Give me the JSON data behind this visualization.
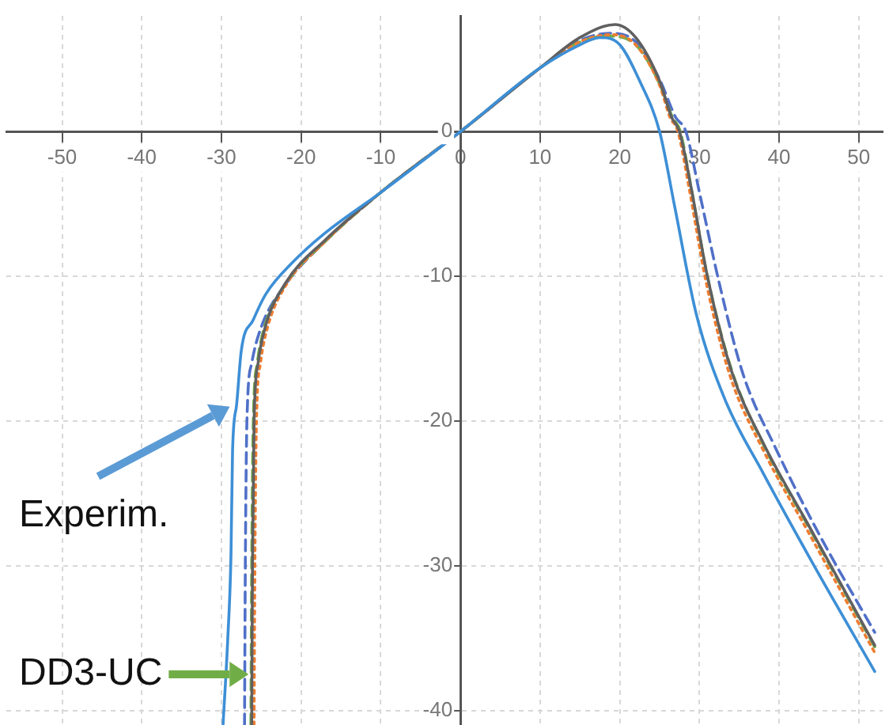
{
  "chart_data": {
    "type": "line",
    "xlim": [
      -57,
      53
    ],
    "ylim": [
      -41,
      8
    ],
    "xticks": [
      -50,
      -40,
      -30,
      -20,
      -10,
      0,
      10,
      20,
      30,
      40,
      50
    ],
    "yticks": [
      -40,
      -30,
      -20,
      -10,
      0
    ],
    "grid": true,
    "marker": "none",
    "series": [
      {
        "color": "#3d8fd6",
        "line_style": "solid",
        "x": [
          -29.8,
          -29.2,
          -28.8,
          -28.6,
          -28.1,
          -27.5,
          -26,
          -24.4,
          -21,
          -17.2,
          -10,
          0,
          10,
          15,
          17.5,
          20,
          22.5,
          25,
          26.9,
          29.6,
          33.2,
          38,
          44.3,
          52
        ],
        "values": [
          -41,
          -35,
          -29.2,
          -22,
          -18.9,
          -15.1,
          -13,
          -11.2,
          -9,
          -7.1,
          -4.2,
          0,
          4.4,
          6,
          6.5,
          6,
          3.5,
          0,
          -5.2,
          -12.6,
          -18.5,
          -23.6,
          -29.9,
          -37.3
        ]
      },
      {
        "color": "#606060",
        "line_style": "solid",
        "x": [
          -26.2,
          -26.1,
          -25.9,
          -25.4,
          -24.5,
          -22,
          -17,
          -10,
          0,
          10,
          15,
          19.4,
          22,
          25,
          26.5,
          27.5,
          29,
          31,
          34,
          38,
          44,
          52
        ],
        "values": [
          -41,
          -30,
          -20,
          -16,
          -13.5,
          -10.5,
          -7.5,
          -4.2,
          0,
          4.4,
          6.5,
          7.4,
          6.5,
          3.5,
          1,
          0,
          -4,
          -10,
          -16.5,
          -21.5,
          -27.5,
          -35.5
        ]
      },
      {
        "color": "#ed7d31",
        "line_style": "dotted",
        "x": [
          -25.9,
          -25.8,
          -25.6,
          -25.1,
          -24.2,
          -22,
          -17,
          -10,
          0,
          10,
          15,
          19,
          22,
          25,
          26.3,
          27.3,
          28.8,
          30.8,
          33.8,
          38,
          44,
          52
        ],
        "values": [
          -41,
          -30,
          -20,
          -16,
          -13.5,
          -10.7,
          -7.6,
          -4.2,
          0,
          4.4,
          6.2,
          6.7,
          6,
          3.2,
          1,
          0,
          -4.2,
          -10.3,
          -16.8,
          -22,
          -28,
          -36
        ]
      },
      {
        "color": "#70ad47",
        "line_style": "dashed",
        "x": [
          -26.3,
          -26.2,
          -26,
          -25.5,
          -24.6,
          -22,
          -17,
          -10,
          0,
          10,
          15,
          18.5,
          22,
          25,
          26.6,
          27.6,
          29,
          31,
          34,
          38,
          44,
          52
        ],
        "values": [
          -41,
          -30,
          -20,
          -16,
          -13.5,
          -10.6,
          -7.6,
          -4.2,
          0,
          4.4,
          6.2,
          6.6,
          6,
          3.3,
          1,
          0,
          -4,
          -10,
          -16.4,
          -21.6,
          -27.6,
          -35.6
        ]
      },
      {
        "color": "#5070c8",
        "line_style": "dashed",
        "x": [
          -27.1,
          -27,
          -26.8,
          -26.2,
          -25,
          -22,
          -17,
          -10,
          0,
          10,
          15,
          19,
          22,
          25,
          27,
          28.3,
          30,
          32.5,
          35.5,
          39.5,
          45,
          52
        ],
        "values": [
          -41,
          -30,
          -20,
          -16,
          -13.5,
          -10.6,
          -7.6,
          -4.2,
          0,
          4.4,
          6.3,
          6.8,
          6.2,
          3.6,
          1,
          0,
          -4.2,
          -10.5,
          -16.8,
          -21.8,
          -27.8,
          -34.6
        ]
      }
    ],
    "annotations": [
      {
        "text": "Experim.",
        "x": -28.6,
        "y": -18.9
      },
      {
        "text": "DD3-UC",
        "x": -26.2,
        "y": -37.5
      }
    ]
  }
}
